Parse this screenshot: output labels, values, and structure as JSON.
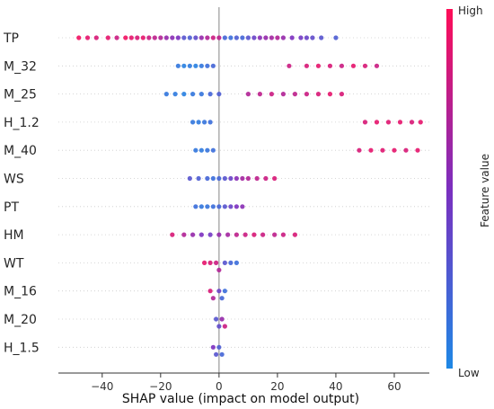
{
  "chart_data": {
    "type": "scatter",
    "subtype": "shap-beeswarm-summary",
    "title": "",
    "xlabel": "SHAP value (impact on model output)",
    "ylabel": "",
    "xlim": [
      -55,
      72
    ],
    "xticks": [
      -40,
      -20,
      0,
      20,
      40,
      60
    ],
    "grid": false,
    "features": [
      {
        "name": "TP",
        "points": [
          {
            "shap": -48,
            "value": 0.95
          },
          {
            "shap": -45,
            "value": 0.9
          },
          {
            "shap": -42,
            "value": 0.85
          },
          {
            "shap": -38,
            "value": 0.9
          },
          {
            "shap": -35,
            "value": 0.8
          },
          {
            "shap": -32,
            "value": 0.95
          },
          {
            "shap": -30,
            "value": 0.9
          },
          {
            "shap": -28,
            "value": 0.85
          },
          {
            "shap": -26,
            "value": 0.9
          },
          {
            "shap": -24,
            "value": 0.8
          },
          {
            "shap": -22,
            "value": 0.75
          },
          {
            "shap": -20,
            "value": 0.7
          },
          {
            "shap": -18,
            "value": 0.6
          },
          {
            "shap": -16,
            "value": 0.55
          },
          {
            "shap": -14,
            "value": 0.5
          },
          {
            "shap": -12,
            "value": 0.3
          },
          {
            "shap": -10,
            "value": 0.25
          },
          {
            "shap": -8,
            "value": 0.35
          },
          {
            "shap": -6,
            "value": 0.6
          },
          {
            "shap": -4,
            "value": 0.7
          },
          {
            "shap": -2,
            "value": 0.8
          },
          {
            "shap": 0,
            "value": 0.75
          },
          {
            "shap": 2,
            "value": 0.2
          },
          {
            "shap": 4,
            "value": 0.15
          },
          {
            "shap": 6,
            "value": 0.25
          },
          {
            "shap": 8,
            "value": 0.2
          },
          {
            "shap": 10,
            "value": 0.3
          },
          {
            "shap": 12,
            "value": 0.4
          },
          {
            "shap": 14,
            "value": 0.55
          },
          {
            "shap": 16,
            "value": 0.6
          },
          {
            "shap": 18,
            "value": 0.65
          },
          {
            "shap": 20,
            "value": 0.7
          },
          {
            "shap": 22,
            "value": 0.6
          },
          {
            "shap": 25,
            "value": 0.5
          },
          {
            "shap": 28,
            "value": 0.45
          },
          {
            "shap": 30,
            "value": 0.4
          },
          {
            "shap": 32,
            "value": 0.35
          },
          {
            "shap": 35,
            "value": 0.3
          },
          {
            "shap": 40,
            "value": 0.25
          }
        ]
      },
      {
        "name": "M_32",
        "points": [
          {
            "shap": -14,
            "value": 0.1
          },
          {
            "shap": -12,
            "value": 0.05
          },
          {
            "shap": -10,
            "value": 0.08
          },
          {
            "shap": -8,
            "value": 0.05
          },
          {
            "shap": -6,
            "value": 0.1
          },
          {
            "shap": -4,
            "value": 0.15
          },
          {
            "shap": -2,
            "value": 0.2
          },
          {
            "shap": 24,
            "value": 0.8
          },
          {
            "shap": 30,
            "value": 0.85
          },
          {
            "shap": 34,
            "value": 0.9
          },
          {
            "shap": 38,
            "value": 0.85
          },
          {
            "shap": 42,
            "value": 0.8
          },
          {
            "shap": 46,
            "value": 0.9
          },
          {
            "shap": 50,
            "value": 0.85
          },
          {
            "shap": 54,
            "value": 0.8
          }
        ]
      },
      {
        "name": "M_25",
        "points": [
          {
            "shap": -18,
            "value": 0.1
          },
          {
            "shap": -15,
            "value": 0.08
          },
          {
            "shap": -12,
            "value": 0.05
          },
          {
            "shap": -9,
            "value": 0.1
          },
          {
            "shap": -6,
            "value": 0.12
          },
          {
            "shap": -3,
            "value": 0.2
          },
          {
            "shap": 0,
            "value": 0.25
          },
          {
            "shap": 10,
            "value": 0.7
          },
          {
            "shap": 14,
            "value": 0.75
          },
          {
            "shap": 18,
            "value": 0.8
          },
          {
            "shap": 22,
            "value": 0.7
          },
          {
            "shap": 26,
            "value": 0.75
          },
          {
            "shap": 30,
            "value": 0.8
          },
          {
            "shap": 34,
            "value": 0.85
          },
          {
            "shap": 38,
            "value": 0.9
          },
          {
            "shap": 42,
            "value": 0.85
          }
        ]
      },
      {
        "name": "H_1.2",
        "points": [
          {
            "shap": -9,
            "value": 0.1
          },
          {
            "shap": -7,
            "value": 0.08
          },
          {
            "shap": -5,
            "value": 0.12
          },
          {
            "shap": -3,
            "value": 0.15
          },
          {
            "shap": 50,
            "value": 0.85
          },
          {
            "shap": 54,
            "value": 0.9
          },
          {
            "shap": 58,
            "value": 0.88
          },
          {
            "shap": 62,
            "value": 0.9
          },
          {
            "shap": 66,
            "value": 0.85
          },
          {
            "shap": 69,
            "value": 0.9
          }
        ]
      },
      {
        "name": "M_40",
        "points": [
          {
            "shap": -8,
            "value": 0.1
          },
          {
            "shap": -6,
            "value": 0.08
          },
          {
            "shap": -4,
            "value": 0.12
          },
          {
            "shap": -2,
            "value": 0.15
          },
          {
            "shap": 48,
            "value": 0.85
          },
          {
            "shap": 52,
            "value": 0.9
          },
          {
            "shap": 56,
            "value": 0.88
          },
          {
            "shap": 60,
            "value": 0.9
          },
          {
            "shap": 64,
            "value": 0.85
          },
          {
            "shap": 68,
            "value": 0.9
          }
        ]
      },
      {
        "name": "WS",
        "points": [
          {
            "shap": -10,
            "value": 0.3
          },
          {
            "shap": -7,
            "value": 0.25
          },
          {
            "shap": -4,
            "value": 0.2
          },
          {
            "shap": -2,
            "value": 0.15
          },
          {
            "shap": 0,
            "value": 0.2
          },
          {
            "shap": 2,
            "value": 0.3
          },
          {
            "shap": 4,
            "value": 0.4
          },
          {
            "shap": 6,
            "value": 0.55
          },
          {
            "shap": 8,
            "value": 0.65
          },
          {
            "shap": 10,
            "value": 0.7
          },
          {
            "shap": 13,
            "value": 0.75
          },
          {
            "shap": 16,
            "value": 0.8
          },
          {
            "shap": 19,
            "value": 0.85
          }
        ]
      },
      {
        "name": "PT",
        "points": [
          {
            "shap": -8,
            "value": 0.15
          },
          {
            "shap": -6,
            "value": 0.1
          },
          {
            "shap": -4,
            "value": 0.12
          },
          {
            "shap": -2,
            "value": 0.15
          },
          {
            "shap": 0,
            "value": 0.2
          },
          {
            "shap": 2,
            "value": 0.3
          },
          {
            "shap": 4,
            "value": 0.4
          },
          {
            "shap": 6,
            "value": 0.5
          },
          {
            "shap": 8,
            "value": 0.55
          }
        ]
      },
      {
        "name": "HM",
        "points": [
          {
            "shap": -16,
            "value": 0.85
          },
          {
            "shap": -12,
            "value": 0.7
          },
          {
            "shap": -9,
            "value": 0.6
          },
          {
            "shap": -6,
            "value": 0.5
          },
          {
            "shap": -3,
            "value": 0.45
          },
          {
            "shap": 0,
            "value": 0.6
          },
          {
            "shap": 3,
            "value": 0.65
          },
          {
            "shap": 6,
            "value": 0.75
          },
          {
            "shap": 9,
            "value": 0.8
          },
          {
            "shap": 12,
            "value": 0.85
          },
          {
            "shap": 15,
            "value": 0.8
          },
          {
            "shap": 19,
            "value": 0.75
          },
          {
            "shap": 22,
            "value": 0.8
          },
          {
            "shap": 26,
            "value": 0.85
          }
        ]
      },
      {
        "name": "WT",
        "points": [
          {
            "shap": -5,
            "value": 0.9
          },
          {
            "shap": -3,
            "value": 0.85
          },
          {
            "shap": -1,
            "value": 0.8
          },
          {
            "shap": 0,
            "value": 0.7
          },
          {
            "shap": 2,
            "value": 0.3
          },
          {
            "shap": 4,
            "value": 0.2
          },
          {
            "shap": 6,
            "value": 0.15
          }
        ]
      },
      {
        "name": "M_16",
        "points": [
          {
            "shap": -3,
            "value": 0.85
          },
          {
            "shap": -2,
            "value": 0.7
          },
          {
            "shap": 0,
            "value": 0.4
          },
          {
            "shap": 1,
            "value": 0.2
          },
          {
            "shap": 2,
            "value": 0.15
          }
        ]
      },
      {
        "name": "M_20",
        "points": [
          {
            "shap": -1,
            "value": 0.3
          },
          {
            "shap": 0,
            "value": 0.35
          },
          {
            "shap": 1,
            "value": 0.6
          },
          {
            "shap": 2,
            "value": 0.8
          }
        ]
      },
      {
        "name": "H_1.5",
        "points": [
          {
            "shap": -2,
            "value": 0.5
          },
          {
            "shap": -1,
            "value": 0.3
          },
          {
            "shap": 0,
            "value": 0.25
          },
          {
            "shap": 1,
            "value": 0.2
          }
        ]
      }
    ],
    "colorbar": {
      "label": "Feature value",
      "high_label": "High",
      "low_label": "Low",
      "low_color": "#1e88e5",
      "mid_color": "#7b2fbf",
      "high_color": "#ff0d57"
    },
    "zero_line_color": "#999999"
  }
}
